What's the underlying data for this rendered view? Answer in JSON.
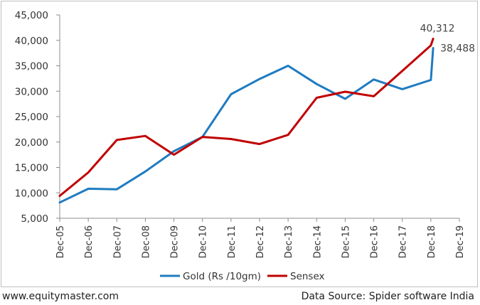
{
  "chart_data": {
    "type": "line",
    "categories": [
      "Dec-05",
      "Dec-06",
      "Dec-07",
      "Dec-08",
      "Dec-09",
      "Dec-10",
      "Dec-11",
      "Dec-12",
      "Dec-13",
      "Dec-14",
      "Dec-15",
      "Dec-16",
      "Dec-17",
      "Dec-18",
      "Dec-19"
    ],
    "ylim": [
      5000,
      45000
    ],
    "yticks": [
      5000,
      10000,
      15000,
      20000,
      25000,
      30000,
      35000,
      40000,
      45000
    ],
    "ytick_labels": [
      "5,000",
      "10,000",
      "15,000",
      "20,000",
      "25,000",
      "30,000",
      "35,000",
      "40,000",
      "45,000"
    ],
    "grid": false,
    "legend_position": "bottom",
    "series": [
      {
        "name": "Gold (Rs /10gm)",
        "color": "#1f7bc1",
        "x_index": [
          0,
          1,
          2,
          3,
          4,
          5,
          6,
          7,
          8,
          9,
          10,
          11,
          12,
          13,
          13.08
        ],
        "values": [
          8100,
          10800,
          10700,
          14200,
          18200,
          21000,
          29400,
          32400,
          35000,
          31400,
          28500,
          32300,
          30400,
          32200,
          38488
        ]
      },
      {
        "name": "Sensex",
        "color": "#c00000",
        "x_index": [
          0,
          1,
          2,
          3,
          4,
          5,
          6,
          7,
          8,
          9,
          10,
          11,
          12,
          13,
          13.08
        ],
        "values": [
          9400,
          14000,
          20400,
          21200,
          17500,
          21000,
          20600,
          19600,
          21400,
          28700,
          29900,
          29000,
          34000,
          39000,
          40312
        ]
      }
    ],
    "annotations": [
      {
        "text": "40,312",
        "series": "Sensex"
      },
      {
        "text": "38,488",
        "series": "Gold (Rs /10gm)"
      }
    ]
  },
  "footer": {
    "source_site": "www.equitymaster.com",
    "data_source": "Data Source: Spider software India"
  }
}
